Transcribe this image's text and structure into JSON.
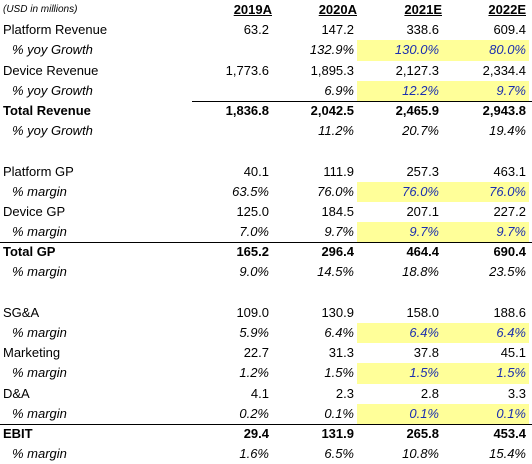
{
  "note": "(USD in millions)",
  "years": [
    "2019A",
    "2020A",
    "2021E",
    "2022E"
  ],
  "rows": [
    {
      "label": "Platform Revenue",
      "values": [
        "63.2",
        "147.2",
        "338.6",
        "609.4"
      ]
    },
    {
      "label": "% yoy Growth",
      "values": [
        "",
        "132.9%",
        "130.0%",
        "80.0%"
      ]
    },
    {
      "label": "Device Revenue",
      "values": [
        "1,773.6",
        "1,895.3",
        "2,127.3",
        "2,334.4"
      ]
    },
    {
      "label": "% yoy Growth",
      "values": [
        "",
        "6.9%",
        "12.2%",
        "9.7%"
      ]
    },
    {
      "label": "Total Revenue",
      "values": [
        "1,836.8",
        "2,042.5",
        "2,465.9",
        "2,943.8"
      ]
    },
    {
      "label": "% yoy Growth",
      "values": [
        "",
        "11.2%",
        "20.7%",
        "19.4%"
      ]
    },
    {
      "label": "Platform GP",
      "values": [
        "40.1",
        "111.9",
        "257.3",
        "463.1"
      ]
    },
    {
      "label": "% margin",
      "values": [
        "63.5%",
        "76.0%",
        "76.0%",
        "76.0%"
      ]
    },
    {
      "label": "Device GP",
      "values": [
        "125.0",
        "184.5",
        "207.1",
        "227.2"
      ]
    },
    {
      "label": "% margin",
      "values": [
        "7.0%",
        "9.7%",
        "9.7%",
        "9.7%"
      ]
    },
    {
      "label": "Total GP",
      "values": [
        "165.2",
        "296.4",
        "464.4",
        "690.4"
      ]
    },
    {
      "label": "% margin",
      "values": [
        "9.0%",
        "14.5%",
        "18.8%",
        "23.5%"
      ]
    },
    {
      "label": "SG&A",
      "values": [
        "109.0",
        "130.9",
        "158.0",
        "188.6"
      ]
    },
    {
      "label": "% margin",
      "values": [
        "5.9%",
        "6.4%",
        "6.4%",
        "6.4%"
      ]
    },
    {
      "label": "Marketing",
      "values": [
        "22.7",
        "31.3",
        "37.8",
        "45.1"
      ]
    },
    {
      "label": "% margin",
      "values": [
        "1.2%",
        "1.5%",
        "1.5%",
        "1.5%"
      ]
    },
    {
      "label": "D&A",
      "values": [
        "4.1",
        "2.3",
        "2.8",
        "3.3"
      ]
    },
    {
      "label": "% margin",
      "values": [
        "0.2%",
        "0.1%",
        "0.1%",
        "0.1%"
      ]
    },
    {
      "label": "EBIT",
      "values": [
        "29.4",
        "131.9",
        "265.8",
        "453.4"
      ]
    },
    {
      "label": "% margin",
      "values": [
        "1.6%",
        "6.5%",
        "10.8%",
        "15.4%"
      ]
    }
  ],
  "colors": {
    "highlight_fill": "#ffff99",
    "input_text": "#1c2fb0"
  }
}
